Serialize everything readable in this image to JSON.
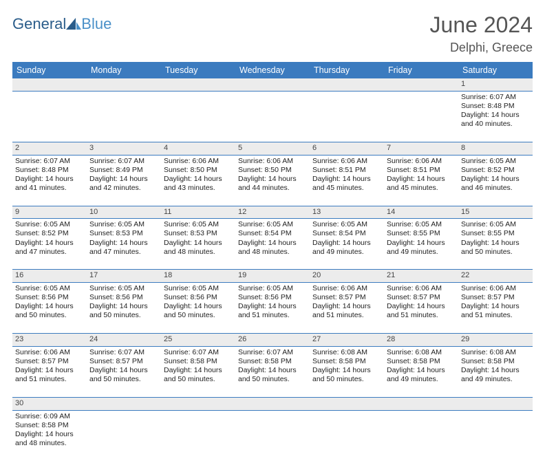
{
  "brand": {
    "a": "General",
    "b": "Blue",
    "color_a": "#2a5c8a",
    "color_b": "#4a90c8"
  },
  "title": "June 2024",
  "location": "Delphi, Greece",
  "header_bg": "#3b7bbf",
  "header_fg": "#ffffff",
  "daynum_bg": "#ececec",
  "rule_color": "#3b7bbf",
  "days": [
    "Sunday",
    "Monday",
    "Tuesday",
    "Wednesday",
    "Thursday",
    "Friday",
    "Saturday"
  ],
  "weeks": [
    {
      "nums": [
        "",
        "",
        "",
        "",
        "",
        "",
        "1"
      ],
      "cells": [
        "",
        "",
        "",
        "",
        "",
        "",
        "Sunrise: 6:07 AM|Sunset: 8:48 PM|Daylight: 14 hours and 40 minutes."
      ]
    },
    {
      "nums": [
        "2",
        "3",
        "4",
        "5",
        "6",
        "7",
        "8"
      ],
      "cells": [
        "Sunrise: 6:07 AM|Sunset: 8:48 PM|Daylight: 14 hours and 41 minutes.",
        "Sunrise: 6:07 AM|Sunset: 8:49 PM|Daylight: 14 hours and 42 minutes.",
        "Sunrise: 6:06 AM|Sunset: 8:50 PM|Daylight: 14 hours and 43 minutes.",
        "Sunrise: 6:06 AM|Sunset: 8:50 PM|Daylight: 14 hours and 44 minutes.",
        "Sunrise: 6:06 AM|Sunset: 8:51 PM|Daylight: 14 hours and 45 minutes.",
        "Sunrise: 6:06 AM|Sunset: 8:51 PM|Daylight: 14 hours and 45 minutes.",
        "Sunrise: 6:05 AM|Sunset: 8:52 PM|Daylight: 14 hours and 46 minutes."
      ]
    },
    {
      "nums": [
        "9",
        "10",
        "11",
        "12",
        "13",
        "14",
        "15"
      ],
      "cells": [
        "Sunrise: 6:05 AM|Sunset: 8:52 PM|Daylight: 14 hours and 47 minutes.",
        "Sunrise: 6:05 AM|Sunset: 8:53 PM|Daylight: 14 hours and 47 minutes.",
        "Sunrise: 6:05 AM|Sunset: 8:53 PM|Daylight: 14 hours and 48 minutes.",
        "Sunrise: 6:05 AM|Sunset: 8:54 PM|Daylight: 14 hours and 48 minutes.",
        "Sunrise: 6:05 AM|Sunset: 8:54 PM|Daylight: 14 hours and 49 minutes.",
        "Sunrise: 6:05 AM|Sunset: 8:55 PM|Daylight: 14 hours and 49 minutes.",
        "Sunrise: 6:05 AM|Sunset: 8:55 PM|Daylight: 14 hours and 50 minutes."
      ]
    },
    {
      "nums": [
        "16",
        "17",
        "18",
        "19",
        "20",
        "21",
        "22"
      ],
      "cells": [
        "Sunrise: 6:05 AM|Sunset: 8:56 PM|Daylight: 14 hours and 50 minutes.",
        "Sunrise: 6:05 AM|Sunset: 8:56 PM|Daylight: 14 hours and 50 minutes.",
        "Sunrise: 6:05 AM|Sunset: 8:56 PM|Daylight: 14 hours and 50 minutes.",
        "Sunrise: 6:05 AM|Sunset: 8:56 PM|Daylight: 14 hours and 51 minutes.",
        "Sunrise: 6:06 AM|Sunset: 8:57 PM|Daylight: 14 hours and 51 minutes.",
        "Sunrise: 6:06 AM|Sunset: 8:57 PM|Daylight: 14 hours and 51 minutes.",
        "Sunrise: 6:06 AM|Sunset: 8:57 PM|Daylight: 14 hours and 51 minutes."
      ]
    },
    {
      "nums": [
        "23",
        "24",
        "25",
        "26",
        "27",
        "28",
        "29"
      ],
      "cells": [
        "Sunrise: 6:06 AM|Sunset: 8:57 PM|Daylight: 14 hours and 51 minutes.",
        "Sunrise: 6:07 AM|Sunset: 8:57 PM|Daylight: 14 hours and 50 minutes.",
        "Sunrise: 6:07 AM|Sunset: 8:58 PM|Daylight: 14 hours and 50 minutes.",
        "Sunrise: 6:07 AM|Sunset: 8:58 PM|Daylight: 14 hours and 50 minutes.",
        "Sunrise: 6:08 AM|Sunset: 8:58 PM|Daylight: 14 hours and 50 minutes.",
        "Sunrise: 6:08 AM|Sunset: 8:58 PM|Daylight: 14 hours and 49 minutes.",
        "Sunrise: 6:08 AM|Sunset: 8:58 PM|Daylight: 14 hours and 49 minutes."
      ]
    },
    {
      "nums": [
        "30",
        "",
        "",
        "",
        "",
        "",
        ""
      ],
      "cells": [
        "Sunrise: 6:09 AM|Sunset: 8:58 PM|Daylight: 14 hours and 48 minutes.",
        "",
        "",
        "",
        "",
        "",
        ""
      ]
    }
  ]
}
